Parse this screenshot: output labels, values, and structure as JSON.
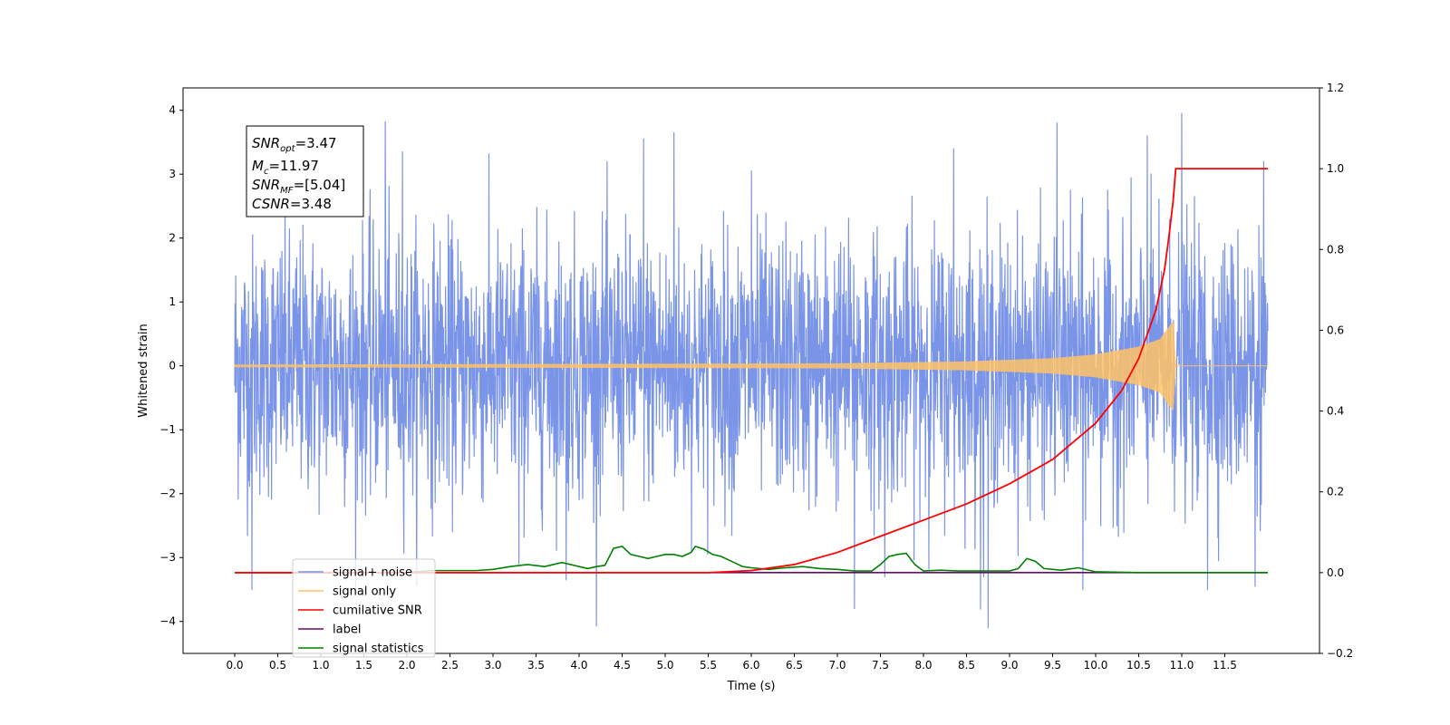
{
  "chart_data": {
    "type": "line",
    "xlabel": "Time (s)",
    "ylabel": "Whitened strain",
    "xlim": [
      -0.6,
      12.6
    ],
    "ylim": [
      -4.5,
      4.35
    ],
    "y2lim": [
      -0.2,
      1.2
    ],
    "xticks": [
      "0.0",
      "0.5",
      "1.0",
      "1.5",
      "2.0",
      "2.5",
      "3.0",
      "3.5",
      "4.0",
      "4.5",
      "5.0",
      "5.5",
      "6.0",
      "6.5",
      "7.0",
      "7.5",
      "8.0",
      "8.5",
      "9.0",
      "9.5",
      "10.0",
      "10.5",
      "11.0",
      "11.5"
    ],
    "yticks": [
      "−4",
      "−3",
      "−2",
      "−1",
      "0",
      "1",
      "2",
      "3",
      "4"
    ],
    "y2ticks": [
      "−0.2",
      "0.0",
      "0.2",
      "0.4",
      "0.6",
      "0.8",
      "1.0",
      "1.2"
    ],
    "grid": false,
    "legend_position": "lower-left",
    "annotation": {
      "lines": [
        {
          "base": "SNR",
          "sub": "opt",
          "value": "=3.47"
        },
        {
          "base": "M",
          "sub": "c",
          "value": "=11.97"
        },
        {
          "base": "SNR",
          "sub": "MF",
          "value": "=[5.04]"
        },
        {
          "base": "CSNR",
          "sub": "",
          "value": "=3.48"
        }
      ]
    },
    "series": [
      {
        "name": "signal+ noise",
        "color": "#7a94e8",
        "axis": "left",
        "x_range": [
          0.0,
          12.0
        ],
        "amplitude": 1.35,
        "spikes": [
          [
            0.2,
            -3.5
          ],
          [
            1.75,
            3.82
          ],
          [
            1.95,
            3.35
          ],
          [
            3.3,
            -3.1
          ],
          [
            3.85,
            -3.35
          ],
          [
            4.75,
            3.55
          ],
          [
            5.1,
            3.65
          ],
          [
            6.0,
            3.05
          ],
          [
            7.2,
            -3.8
          ],
          [
            7.55,
            -3.3
          ],
          [
            8.35,
            3.4
          ],
          [
            8.7,
            -3.3
          ],
          [
            8.75,
            -4.1
          ],
          [
            9.55,
            3.8
          ],
          [
            9.85,
            -3.5
          ],
          [
            10.6,
            3.6
          ],
          [
            11.0,
            3.95
          ],
          [
            11.3,
            -3.5
          ],
          [
            11.85,
            -3.45
          ],
          [
            11.95,
            3.2
          ]
        ]
      },
      {
        "name": "signal only",
        "color": "#ffc266",
        "axis": "left",
        "envelope": [
          [
            0.0,
            0.02
          ],
          [
            7.0,
            0.04
          ],
          [
            8.5,
            0.07
          ],
          [
            9.5,
            0.12
          ],
          [
            10.0,
            0.18
          ],
          [
            10.5,
            0.3
          ],
          [
            10.75,
            0.42
          ],
          [
            10.9,
            0.7
          ],
          [
            10.93,
            0.0
          ],
          [
            12.0,
            0.0
          ]
        ]
      },
      {
        "name": "cumilative SNR",
        "color": "#ff0000",
        "axis": "right",
        "x": [
          0.0,
          5.5,
          6.0,
          6.5,
          7.0,
          7.5,
          8.0,
          8.5,
          9.0,
          9.5,
          10.0,
          10.3,
          10.5,
          10.7,
          10.8,
          10.85,
          10.9,
          10.93,
          11.0,
          12.0
        ],
        "values": [
          0.0,
          0.0,
          0.005,
          0.02,
          0.05,
          0.09,
          0.13,
          0.17,
          0.22,
          0.28,
          0.37,
          0.45,
          0.53,
          0.65,
          0.75,
          0.83,
          0.92,
          1.0,
          1.0,
          1.0
        ]
      },
      {
        "name": "label",
        "color": "#6a0a6a",
        "axis": "right",
        "x": [
          0.0,
          12.0
        ],
        "values": [
          0.0,
          0.0
        ]
      },
      {
        "name": "signal statistics",
        "color": "#008000",
        "axis": "right",
        "x": [
          0.0,
          2.0,
          2.3,
          2.5,
          2.8,
          3.0,
          3.2,
          3.4,
          3.6,
          3.8,
          4.0,
          4.1,
          4.2,
          4.3,
          4.4,
          4.5,
          4.6,
          4.7,
          4.8,
          4.9,
          5.0,
          5.1,
          5.2,
          5.3,
          5.35,
          5.45,
          5.55,
          5.65,
          5.8,
          5.9,
          6.0,
          6.2,
          6.4,
          6.6,
          6.8,
          7.0,
          7.2,
          7.4,
          7.5,
          7.6,
          7.7,
          7.8,
          7.9,
          8.0,
          8.2,
          8.4,
          8.6,
          8.8,
          9.0,
          9.1,
          9.2,
          9.3,
          9.4,
          9.6,
          9.8,
          10.0,
          10.5,
          12.0
        ],
        "values": [
          0.0,
          0.0,
          0.005,
          0.005,
          0.005,
          0.008,
          0.015,
          0.02,
          0.015,
          0.025,
          0.015,
          0.01,
          0.015,
          0.018,
          0.06,
          0.065,
          0.045,
          0.04,
          0.035,
          0.04,
          0.045,
          0.045,
          0.04,
          0.05,
          0.065,
          0.058,
          0.045,
          0.04,
          0.025,
          0.015,
          0.012,
          0.008,
          0.012,
          0.015,
          0.01,
          0.008,
          0.004,
          0.004,
          0.02,
          0.04,
          0.045,
          0.048,
          0.02,
          0.004,
          0.006,
          0.004,
          0.004,
          0.004,
          0.004,
          0.01,
          0.035,
          0.028,
          0.01,
          0.006,
          0.012,
          0.002,
          0.0,
          0.0
        ]
      }
    ]
  }
}
